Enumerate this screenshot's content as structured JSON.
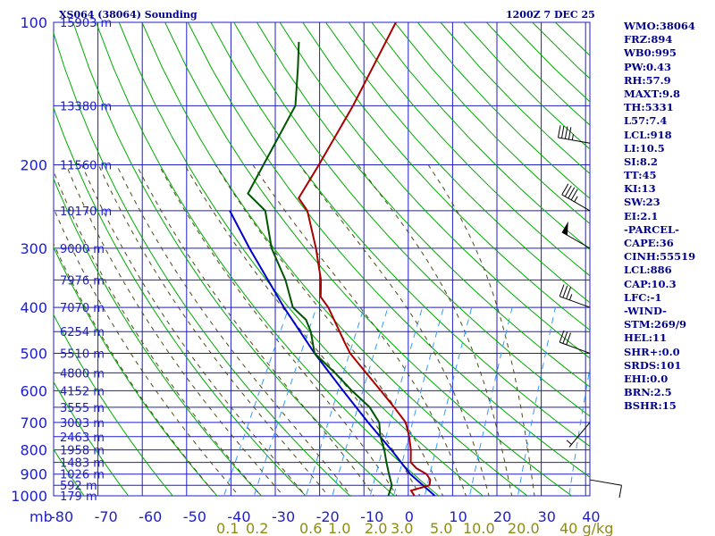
{
  "header": {
    "station": "XS064 (38064) Sounding",
    "time": "1200Z  7 DEC 25"
  },
  "colors": {
    "frame": "#1e1ec8",
    "dry_adiabat": "#00aa00",
    "moist_adiabat": "#4a4a1a",
    "mixing_ratio": "#3399ff",
    "temperature": "#aa0000",
    "dewpoint": "#005500",
    "parcel": "#0000cc",
    "wind_barb": "#000000"
  },
  "chart_data": {
    "type": "skew-t",
    "ylabel": "mb",
    "xlabel": "",
    "pressure_ticks": [
      100,
      200,
      300,
      400,
      500,
      600,
      700,
      800,
      900,
      1000
    ],
    "temp_ticks": [
      -80,
      -70,
      -60,
      -50,
      -40,
      -30,
      -20,
      -10,
      0,
      10,
      20,
      30,
      40
    ],
    "temp_tick_labels": [
      "-80",
      "-70",
      "-60",
      "-50",
      "-40",
      "-30",
      "-20",
      "-10",
      "0",
      "10",
      "20",
      "30",
      "40"
    ],
    "mixing_ratio_labels": [
      "0.1",
      "0.2",
      "0.6",
      "1.0",
      "2.0",
      "3.0",
      "5.0",
      "10.0",
      "20.0",
      "40 g/kg"
    ],
    "height_labels": [
      {
        "p": 100,
        "text": "15903 m"
      },
      {
        "p": 150,
        "text": "13380 m"
      },
      {
        "p": 200,
        "text": "11560 m"
      },
      {
        "p": 250,
        "text": "10170 m"
      },
      {
        "p": 300,
        "text": "9000 m"
      },
      {
        "p": 350,
        "text": "7976 m"
      },
      {
        "p": 400,
        "text": "7070 m"
      },
      {
        "p": 450,
        "text": "6254 m"
      },
      {
        "p": 500,
        "text": "5510 m"
      },
      {
        "p": 550,
        "text": "4800 m"
      },
      {
        "p": 600,
        "text": "4152 m"
      },
      {
        "p": 650,
        "text": "3555 m"
      },
      {
        "p": 700,
        "text": "3003 m"
      },
      {
        "p": 750,
        "text": "2463 m"
      },
      {
        "p": 800,
        "text": "1958 m"
      },
      {
        "p": 850,
        "text": "1483 m"
      },
      {
        "p": 900,
        "text": "1026 m"
      },
      {
        "p": 950,
        "text": "592 m"
      },
      {
        "p": 1000,
        "text": "179 m"
      }
    ],
    "temperature": [
      {
        "p": 1000,
        "t": 1.4
      },
      {
        "p": 975,
        "t": 0.0
      },
      {
        "p": 950,
        "t": 3.5
      },
      {
        "p": 925,
        "t": 3.0
      },
      {
        "p": 900,
        "t": 1.5
      },
      {
        "p": 875,
        "t": -1.5
      },
      {
        "p": 850,
        "t": -3.5
      },
      {
        "p": 800,
        "t": -5.0
      },
      {
        "p": 750,
        "t": -7.0
      },
      {
        "p": 700,
        "t": -9.5
      },
      {
        "p": 650,
        "t": -14.0
      },
      {
        "p": 600,
        "t": -19.0
      },
      {
        "p": 550,
        "t": -24.5
      },
      {
        "p": 500,
        "t": -30.5
      },
      {
        "p": 475,
        "t": -33.0
      },
      {
        "p": 450,
        "t": -35.5
      },
      {
        "p": 400,
        "t": -41.0
      },
      {
        "p": 380,
        "t": -44.0
      },
      {
        "p": 350,
        "t": -46.0
      },
      {
        "p": 300,
        "t": -51.0
      },
      {
        "p": 250,
        "t": -57.5
      },
      {
        "p": 235,
        "t": -61.0
      },
      {
        "p": 200,
        "t": -60.5
      },
      {
        "p": 150,
        "t": -60.0
      },
      {
        "p": 100,
        "t": -60.5
      }
    ],
    "dewpoint": [
      {
        "p": 1000,
        "t": -4.5
      },
      {
        "p": 950,
        "t": -5.0
      },
      {
        "p": 900,
        "t": -7.0
      },
      {
        "p": 850,
        "t": -9.0
      },
      {
        "p": 800,
        "t": -11.0
      },
      {
        "p": 750,
        "t": -13.5
      },
      {
        "p": 700,
        "t": -15.5
      },
      {
        "p": 650,
        "t": -19.5
      },
      {
        "p": 600,
        "t": -25.5
      },
      {
        "p": 550,
        "t": -31.5
      },
      {
        "p": 500,
        "t": -38.5
      },
      {
        "p": 450,
        "t": -42.0
      },
      {
        "p": 425,
        "t": -44.5
      },
      {
        "p": 400,
        "t": -49.0
      },
      {
        "p": 350,
        "t": -54.0
      },
      {
        "p": 300,
        "t": -61.0
      },
      {
        "p": 250,
        "t": -67.0
      },
      {
        "p": 230,
        "t": -73.0
      },
      {
        "p": 200,
        "t": -73.0
      },
      {
        "p": 150,
        "t": -73.0
      },
      {
        "p": 125,
        "t": -77.0
      },
      {
        "p": 110,
        "t": -80.0
      }
    ],
    "parcel": [
      {
        "p": 1000,
        "t": 6.0
      },
      {
        "p": 900,
        "t": -2.2
      },
      {
        "p": 800,
        "t": -9.4
      },
      {
        "p": 700,
        "t": -18.0
      },
      {
        "p": 600,
        "t": -27.5
      },
      {
        "p": 500,
        "t": -38.5
      },
      {
        "p": 400,
        "t": -51.0
      },
      {
        "p": 300,
        "t": -66.0
      },
      {
        "p": 250,
        "t": -75.0
      }
    ],
    "dry_adiabats_K": [
      190,
      200,
      210,
      220,
      230,
      240,
      250,
      260,
      270,
      280,
      290,
      300,
      310,
      320,
      330,
      340,
      350,
      360,
      370,
      380,
      390,
      400,
      410,
      420,
      430,
      440,
      450,
      460,
      470,
      480
    ],
    "moist_adiabats_C": [
      -40,
      -35,
      -30,
      -25,
      -20,
      -15,
      -10,
      -5,
      0,
      5,
      10,
      15,
      20,
      25,
      30
    ],
    "mixing_ratio_lines_gkg": [
      0.1,
      0.2,
      0.6,
      1.0,
      2.0,
      3.0,
      5.0,
      10.0,
      20.0,
      40.0
    ],
    "winds": [
      {
        "p": 180,
        "dir": 280,
        "spd": 45
      },
      {
        "p": 250,
        "dir": 300,
        "spd": 45
      },
      {
        "p": 300,
        "dir": 300,
        "spd": 50
      },
      {
        "p": 400,
        "dir": 290,
        "spd": 35
      },
      {
        "p": 500,
        "dir": 290,
        "spd": 30
      },
      {
        "p": 700,
        "dir": 220,
        "spd": 5
      },
      {
        "p": 925,
        "dir": 100,
        "spd": 10
      }
    ]
  },
  "indices": [
    "WMO:38064",
    "FRZ:894",
    "WB0:995",
    "PW:0.43",
    "RH:57.9",
    "MAXT:9.8",
    "TH:5331",
    "L57:7.4",
    "LCL:918",
    "LI:10.5",
    "SI:8.2",
    "TT:45",
    "KI:13",
    "SW:23",
    "EI:2.1",
    "-PARCEL-",
    "CAPE:36",
    "CINH:55519",
    "LCL:886",
    "CAP:10.3",
    "LFC:-1",
    "-WIND-",
    "STM:269/9",
    "HEL:11",
    "SHR+:0.0",
    "SRDS:101",
    "EHI:0.0",
    "BRN:2.5",
    "BSHR:15"
  ]
}
